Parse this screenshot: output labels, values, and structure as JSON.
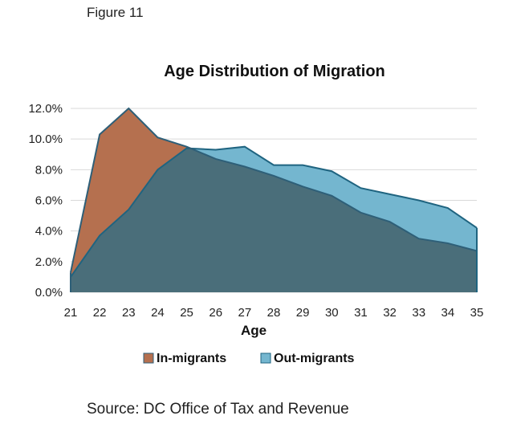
{
  "figure_label": "Figure 11",
  "source": "Source: DC Office of Tax and Revenue",
  "colors": {
    "in_fill": "#b5704f",
    "in_stroke": "#2e5f78",
    "out_fill": "#74b6cf",
    "out_stroke": "#1f6480",
    "overlap_fill": "#4a6e7a",
    "grid": "#d9d9d9"
  },
  "chart_data": {
    "type": "area",
    "title": "Age Distribution of Migration",
    "xlabel": "Age",
    "ylabel": "",
    "x": [
      21,
      22,
      23,
      24,
      25,
      26,
      27,
      28,
      29,
      30,
      31,
      32,
      33,
      34,
      35
    ],
    "ylim": [
      0,
      12
    ],
    "yticks": [
      "0.0%",
      "2.0%",
      "4.0%",
      "6.0%",
      "8.0%",
      "10.0%",
      "12.0%"
    ],
    "grid": true,
    "legend_position": "bottom",
    "series": [
      {
        "name": "In-migrants",
        "values": [
          1.3,
          10.3,
          12.0,
          10.1,
          9.5,
          8.7,
          8.2,
          7.6,
          6.9,
          6.3,
          5.2,
          4.6,
          3.5,
          3.2,
          2.7
        ]
      },
      {
        "name": "Out-migrants",
        "values": [
          1.0,
          3.7,
          5.4,
          8.0,
          9.4,
          9.3,
          9.5,
          8.3,
          8.3,
          7.9,
          6.8,
          6.4,
          6.0,
          5.5,
          4.2
        ]
      }
    ]
  }
}
